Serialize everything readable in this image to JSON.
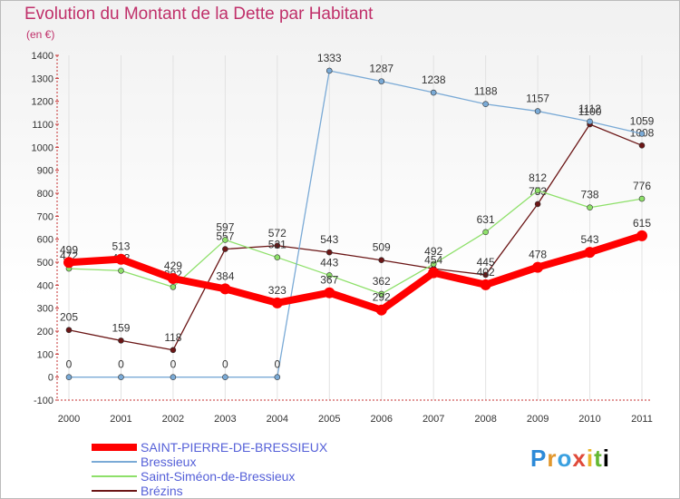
{
  "chart_data": {
    "type": "line",
    "title": "Evolution du Montant de la Dette par Habitant",
    "unit": "(en €)",
    "x": [
      2000,
      2001,
      2002,
      2003,
      2004,
      2005,
      2006,
      2007,
      2008,
      2009,
      2010,
      2011
    ],
    "ylim": [
      -100,
      1400
    ],
    "yticks": [
      -100,
      0,
      100,
      200,
      300,
      400,
      500,
      600,
      700,
      800,
      900,
      1000,
      1100,
      1200,
      1300,
      1400
    ],
    "grid": "vertical",
    "legend_position": "bottom-left",
    "series": [
      {
        "name": "Brézins",
        "color": "#6b1616",
        "values": [
          205,
          159,
          118,
          557,
          572,
          543,
          509,
          472,
          445,
          753,
          1100,
          1008
        ],
        "labels": [
          "205",
          "159",
          "118",
          "557",
          "572",
          "543",
          "509",
          "",
          "445",
          "753",
          "1100",
          "1008"
        ]
      },
      {
        "name": "Saint-Siméon-de-Bressieux",
        "color": "#8ee06a",
        "values": [
          472,
          463,
          392,
          597,
          521,
          443,
          362,
          492,
          631,
          812,
          738,
          776
        ],
        "labels": [
          "472",
          "463",
          "392",
          "597",
          "521",
          "443",
          "362",
          "492",
          "631",
          "812",
          "738",
          "776"
        ]
      },
      {
        "name": "Bressieux",
        "color": "#7aaad6",
        "values": [
          0,
          0,
          0,
          0,
          0,
          1333,
          1287,
          1238,
          1188,
          1157,
          1112,
          1059
        ],
        "labels": [
          "0",
          "0",
          "0",
          "0",
          "0",
          "1333",
          "1287",
          "1238",
          "1188",
          "1157",
          "1112",
          "1059"
        ]
      },
      {
        "name": "SAINT-PIERRE-DE-BRESSIEUX",
        "color": "#ff0000",
        "values": [
          499,
          513,
          429,
          384,
          323,
          367,
          292,
          454,
          402,
          478,
          543,
          615
        ],
        "labels": [
          "499",
          "513",
          "429",
          "384",
          "323",
          "367",
          "292",
          "454",
          "402",
          "478",
          "543",
          "615"
        ]
      }
    ],
    "legend_order": [
      "SAINT-PIERRE-DE-BRESSIEUX",
      "Bressieux",
      "Saint-Siméon-de-Bressieux",
      "Brézins"
    ]
  },
  "logo": {
    "text": [
      "P",
      "r",
      "o",
      "x",
      "i",
      "t",
      "i"
    ]
  }
}
